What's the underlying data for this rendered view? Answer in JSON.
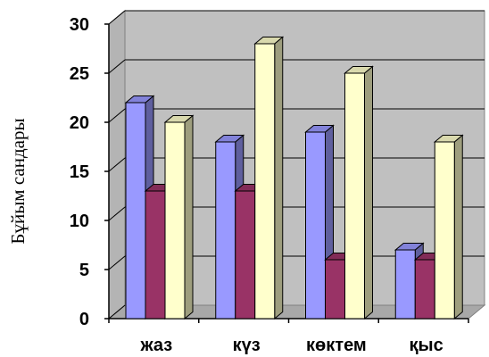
{
  "chart_data": {
    "type": "bar",
    "title": "",
    "xlabel": "",
    "ylabel": "Бұйым сандары",
    "ylim": [
      0,
      30
    ],
    "yticks": [
      0,
      5,
      10,
      15,
      20,
      25,
      30
    ],
    "yticklabels": [
      "0",
      "5",
      "10",
      "15",
      "20",
      "25",
      "30"
    ],
    "grid": true,
    "legend": "none",
    "style": "3d-clustered-column",
    "categories": [
      "жаз",
      "күз",
      "көктем",
      "қыс"
    ],
    "series": [
      {
        "values": [
          22,
          18,
          19,
          7
        ],
        "color": "#9999ff"
      },
      {
        "values": [
          13,
          13,
          6,
          6
        ],
        "color": "#993366"
      },
      {
        "values": [
          20,
          28,
          25,
          18
        ],
        "color": "#ffffcc"
      }
    ],
    "colors": {
      "plot_wall": "#c0c0c0",
      "plot_floor": "#c0c0c0",
      "gridline": "#000000"
    }
  }
}
